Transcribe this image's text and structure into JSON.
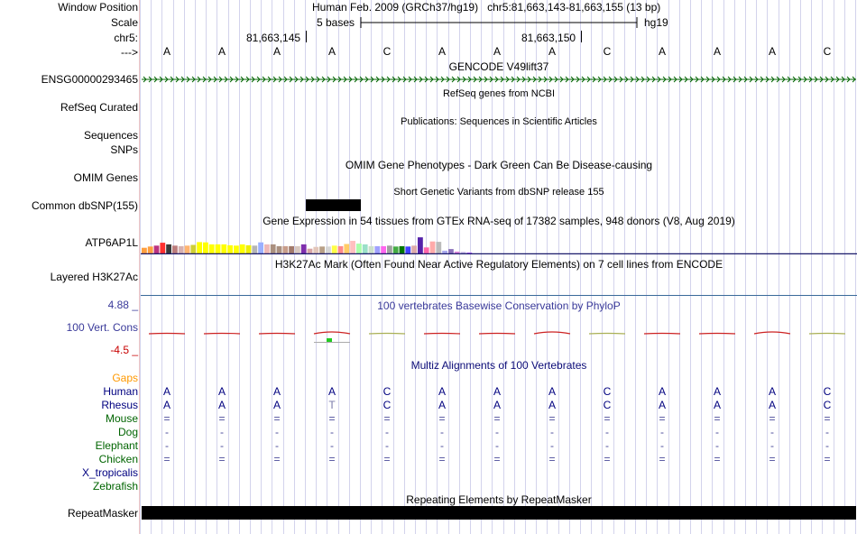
{
  "labels": {
    "window_position": "Window Position",
    "scale": "Scale",
    "chr": "chr5:",
    "arrow": "--->",
    "gene_id": "ENSG00000293465",
    "refseq": "RefSeq Curated",
    "sequences": "Sequences",
    "snps": "SNPs",
    "omim": "OMIM Genes",
    "dbsnp": "Common dbSNP(155)",
    "gtex": "ATP6AP1L",
    "h3k27ac": "Layered H3K27Ac",
    "cons_max": "4.88 _",
    "cons": "100 Vert. Cons",
    "cons_min": "-4.5 _",
    "gaps": "Gaps",
    "repeatmasker": "RepeatMasker"
  },
  "header": {
    "assembly": "Human Feb. 2009 (GRCh37/hg19)",
    "position": "chr5:81,663,143-81,663,155 (13 bp)",
    "scale_text": "5 bases",
    "scale_db": "hg19",
    "tick1": "81,663,145",
    "tick2": "81,663,150"
  },
  "titles": {
    "gencode": "GENCODE V49lift37",
    "refseq": "RefSeq genes from NCBI",
    "publications": "Publications: Sequences in Scientific Articles",
    "omim": "OMIM Gene Phenotypes - Dark Green Can Be Disease-causing",
    "dbsnp": "Short Genetic Variants from dbSNP release 155",
    "gtex": "Gene Expression in 54 tissues from GTEx RNA-seq of 17382 samples, 948 donors (V8, Aug 2019)",
    "h3k27ac": "H3K27Ac Mark (Often Found Near Active Regulatory Elements) on 7 cell lines from ENCODE",
    "cons": "100 vertebrates Basewise Conservation by PhyloP",
    "multiz": "Multiz Alignments of 100 Vertebrates",
    "repeatmasker": "Repeating Elements by RepeatMasker"
  },
  "bases": [
    "A",
    "A",
    "A",
    "A",
    "C",
    "A",
    "A",
    "A",
    "C",
    "A",
    "A",
    "A",
    "C"
  ],
  "species": [
    {
      "name": "Human",
      "color": "#000080",
      "row": [
        "A",
        "A",
        "A",
        "A",
        "C",
        "A",
        "A",
        "A",
        "C",
        "A",
        "A",
        "A",
        "C"
      ]
    },
    {
      "name": "Rhesus",
      "color": "#000080",
      "row": [
        "A",
        "A",
        "A",
        "T",
        "C",
        "A",
        "A",
        "A",
        "C",
        "A",
        "A",
        "A",
        "C"
      ]
    },
    {
      "name": "Mouse",
      "color": "#006400",
      "row": [
        "=",
        "=",
        "=",
        "=",
        "=",
        "=",
        "=",
        "=",
        "=",
        "=",
        "=",
        "=",
        "="
      ]
    },
    {
      "name": "Dog",
      "color": "#006400",
      "row": [
        "-",
        "-",
        "-",
        "-",
        "-",
        "-",
        "-",
        "-",
        "-",
        "-",
        "-",
        "-",
        "-"
      ]
    },
    {
      "name": "Elephant",
      "color": "#006400",
      "row": [
        "-",
        "-",
        "-",
        "-",
        "-",
        "-",
        "-",
        "-",
        "-",
        "-",
        "-",
        "-",
        "-"
      ]
    },
    {
      "name": "Chicken",
      "color": "#006400",
      "row": [
        "=",
        "=",
        "=",
        "=",
        "=",
        "=",
        "=",
        "=",
        "=",
        "=",
        "=",
        "=",
        "="
      ]
    },
    {
      "name": "X_tropicalis",
      "color": "#000080",
      "row": []
    },
    {
      "name": "Zebrafish",
      "color": "#006400",
      "row": []
    }
  ],
  "gtex_colors": [
    "#ff9f3f",
    "#ff9f3f",
    "#bb3380",
    "#ff3030",
    "#3a3a3a",
    "#bb7c7c",
    "#d6b0b0",
    "#ffb470",
    "#cfcf34",
    "#ffff00",
    "#ffff00",
    "#ffff00",
    "#ffff00",
    "#ffff00",
    "#ffff00",
    "#ffff00",
    "#ffff00",
    "#eeee00",
    "#b5b5b5",
    "#9bb0ff",
    "#eeb8b8",
    "#aa9080",
    "#aa9080",
    "#c79d8a",
    "#a27a6c",
    "#d8c8c0",
    "#7f2fad",
    "#d7a6a6",
    "#e2c6ba",
    "#b8a088",
    "#d6d6d6",
    "#ffff44",
    "#ff8a8a",
    "#ffcc66",
    "#ffc0c0",
    "#aaffaa",
    "#9ae0c8",
    "#cce0cc",
    "#a0a0ff",
    "#ff66ee",
    "#a0a0a0",
    "#44aa44",
    "#007700",
    "#4040ff",
    "#ddaaaa",
    "#5522aa",
    "#ff66aa",
    "#ffaaaa",
    "#bbbbbb",
    "#aaaaee",
    "#8a72bb",
    "#dd88dd",
    "#c4b4e4",
    "#bb66ff"
  ],
  "gtex_values": [
    0.45,
    0.55,
    0.62,
    0.85,
    0.72,
    0.62,
    0.58,
    0.62,
    0.68,
    0.9,
    0.88,
    0.72,
    0.72,
    0.72,
    0.65,
    0.62,
    0.72,
    0.65,
    0.62,
    0.88,
    0.72,
    0.72,
    0.58,
    0.58,
    0.58,
    0.58,
    0.72,
    0.38,
    0.52,
    0.55,
    0.55,
    0.62,
    0.58,
    0.75,
    1.0,
    0.78,
    0.72,
    0.58,
    0.58,
    0.58,
    0.62,
    0.55,
    0.58,
    0.55,
    0.62,
    1.28,
    0.48,
    0.95,
    0.92,
    0.22,
    0.35,
    0.15,
    0.12,
    0.08
  ],
  "colors": {
    "gene": "#006400",
    "refseq": "#0c0c78",
    "omim": "#006400",
    "cons": "#3a3a9a",
    "cons_max": "#3a3a9a",
    "cons_min": "#c80000",
    "gaps": "#ff9900",
    "dbsnp_block": "#000000",
    "repeat_block": "#000000",
    "h3k27ac_line": "#3a6a9a",
    "gtex_line": "#1a1a6a"
  }
}
